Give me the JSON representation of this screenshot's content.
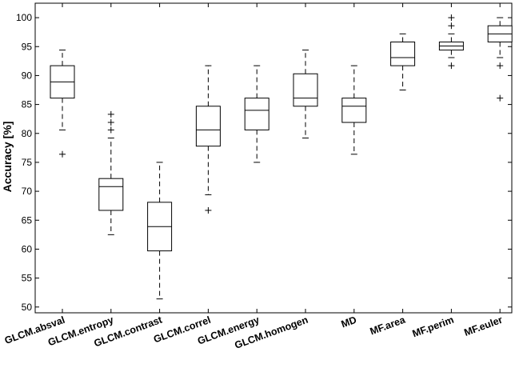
{
  "chart_data": {
    "type": "boxplot",
    "title": "",
    "xlabel": "",
    "ylabel": "Accuracy [%]",
    "ylim": [
      49,
      102.5
    ],
    "yticks": [
      50,
      55,
      60,
      65,
      70,
      75,
      80,
      85,
      90,
      95,
      100
    ],
    "grid": false,
    "categories": [
      "GLCM.absval",
      "GLCM.entropy",
      "GLCM.contrast",
      "GLCM.correl",
      "GLCM.energy",
      "GLCM.homogen",
      "MD",
      "MF.area",
      "MF.perim",
      "MF.euler"
    ],
    "boxes": [
      {
        "name": "GLCM.absval",
        "whisker_low": 80.6,
        "q1": 86.1,
        "median": 88.9,
        "q3": 91.7,
        "whisker_high": 94.4,
        "outliers": [
          76.4
        ]
      },
      {
        "name": "GLCM.entropy",
        "whisker_low": 62.5,
        "q1": 66.7,
        "median": 70.8,
        "q3": 72.2,
        "whisker_high": 79.2,
        "outliers": [
          80.6,
          81.9,
          83.3
        ]
      },
      {
        "name": "GLCM.contrast",
        "whisker_low": 51.4,
        "q1": 59.7,
        "median": 63.9,
        "q3": 68.1,
        "whisker_high": 75.0,
        "outliers": []
      },
      {
        "name": "GLCM.correl",
        "whisker_low": 69.4,
        "q1": 77.8,
        "median": 80.6,
        "q3": 84.7,
        "whisker_high": 91.7,
        "outliers": [
          66.7
        ]
      },
      {
        "name": "GLCM.energy",
        "whisker_low": 75.0,
        "q1": 80.6,
        "median": 84.0,
        "q3": 86.1,
        "whisker_high": 91.7,
        "outliers": []
      },
      {
        "name": "GLCM.homogen",
        "whisker_low": 79.2,
        "q1": 84.7,
        "median": 86.1,
        "q3": 90.3,
        "whisker_high": 94.4,
        "outliers": []
      },
      {
        "name": "MD",
        "whisker_low": 76.4,
        "q1": 81.9,
        "median": 84.7,
        "q3": 86.1,
        "whisker_high": 91.7,
        "outliers": []
      },
      {
        "name": "MF.area",
        "whisker_low": 87.5,
        "q1": 91.7,
        "median": 93.1,
        "q3": 95.8,
        "whisker_high": 97.2,
        "outliers": []
      },
      {
        "name": "MF.perim",
        "whisker_low": 93.1,
        "q1": 94.4,
        "median": 95.1,
        "q3": 95.8,
        "whisker_high": 97.2,
        "outliers": [
          91.7,
          98.6,
          100.0
        ]
      },
      {
        "name": "MF.euler",
        "whisker_low": 93.1,
        "q1": 95.8,
        "median": 97.2,
        "q3": 98.6,
        "whisker_high": 100.0,
        "outliers": [
          86.1,
          91.7
        ]
      }
    ],
    "colors": {
      "box": "#000000",
      "background": "#ffffff"
    }
  }
}
